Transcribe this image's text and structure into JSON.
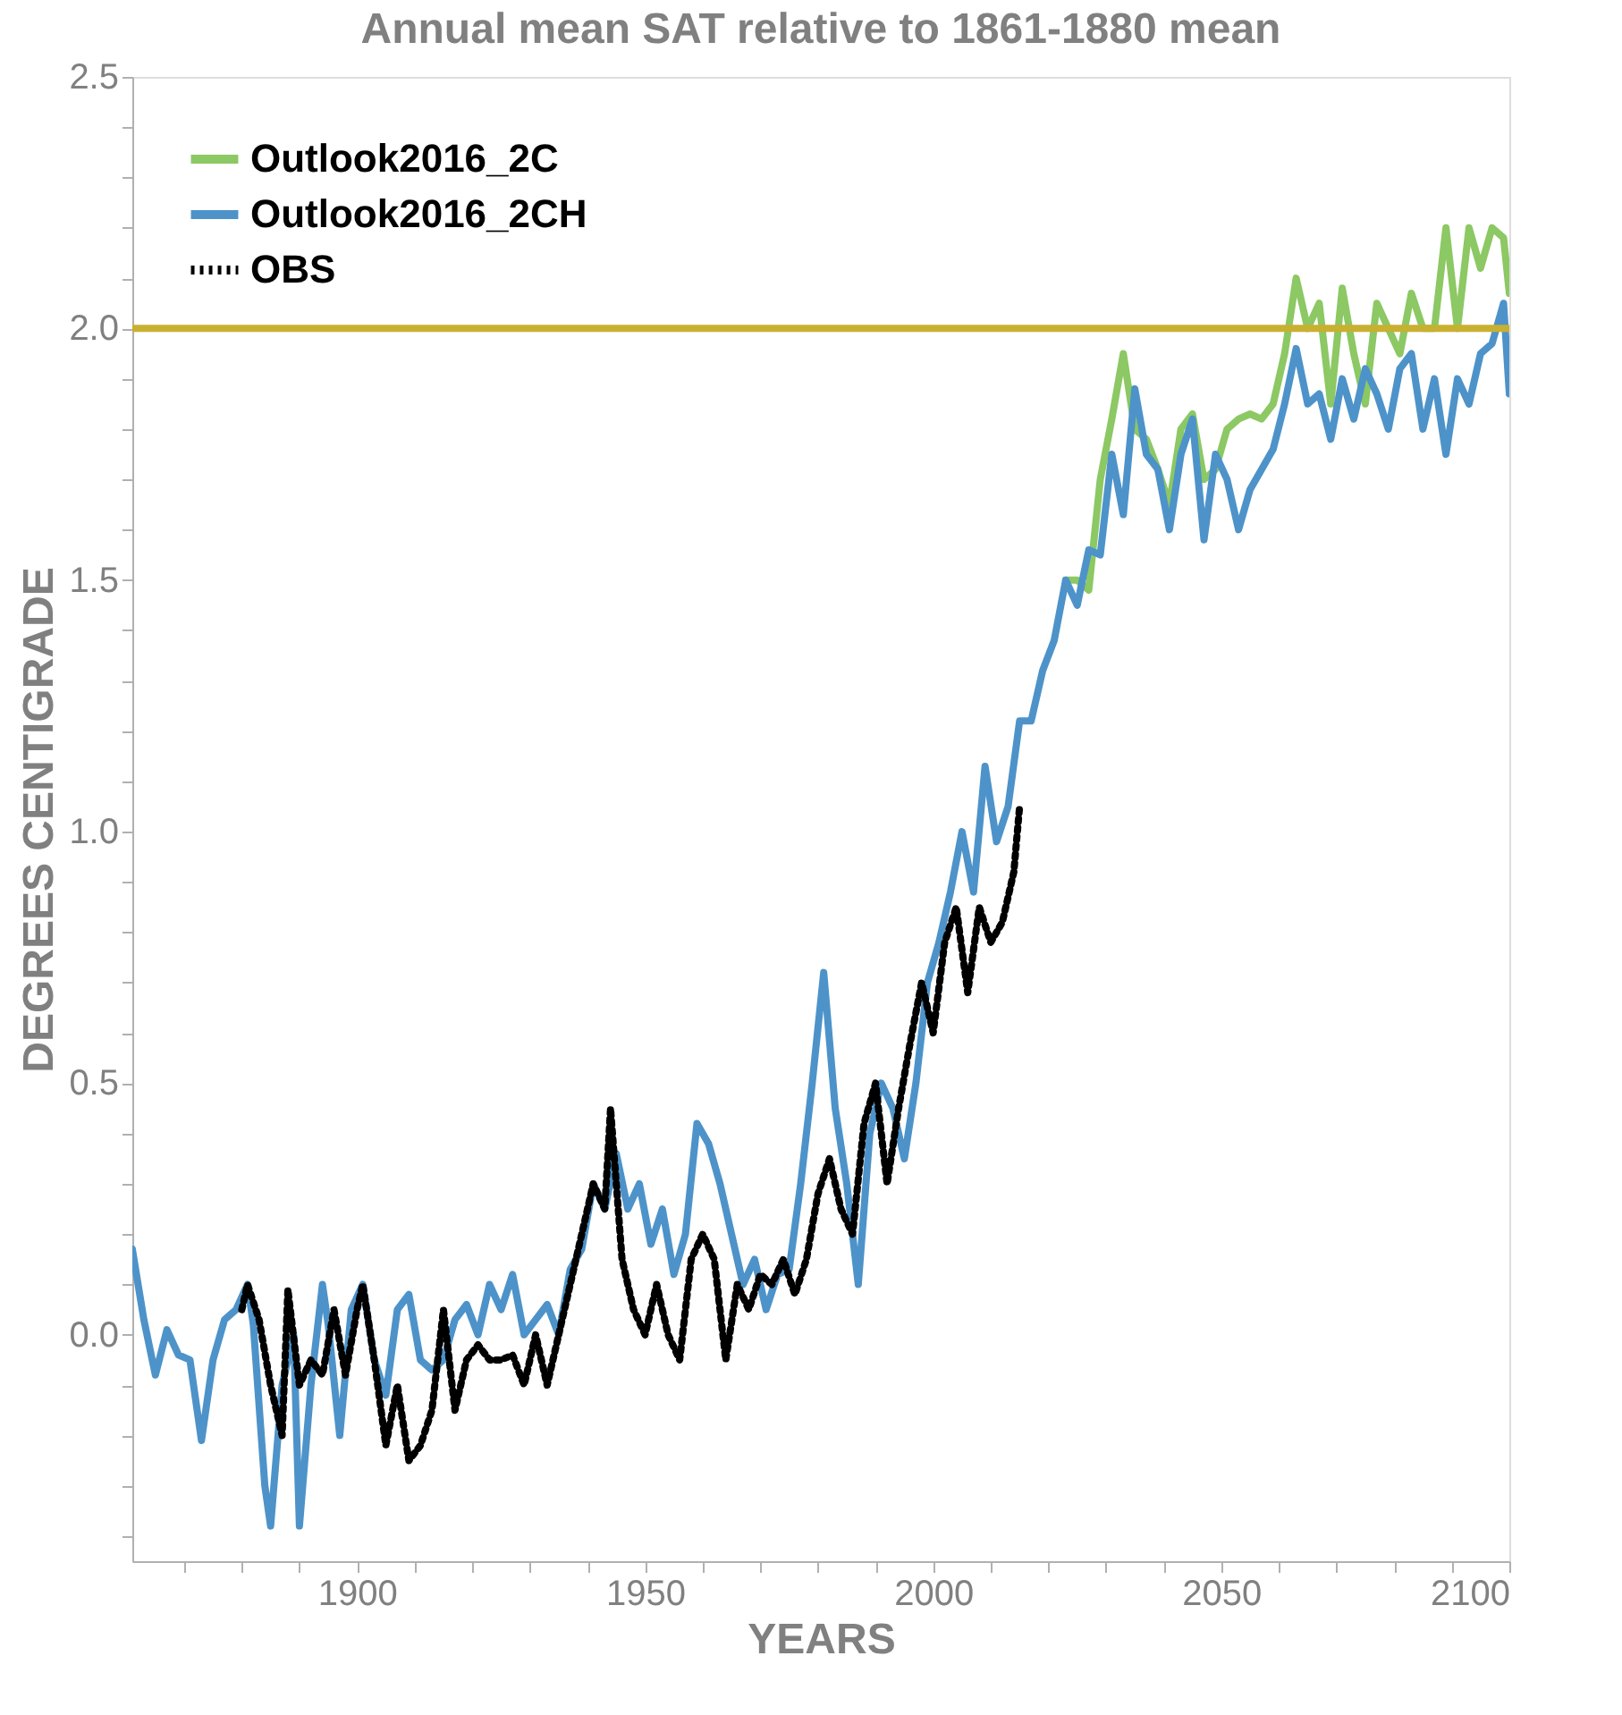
{
  "chart_data": {
    "type": "line",
    "title": "Annual mean SAT relative to 1861-1880 mean",
    "xlabel": "YEARS",
    "ylabel": "DEGREES CENTIGRADE",
    "xlim": [
      1861,
      2100
    ],
    "ylim": [
      -0.45,
      2.5
    ],
    "xticks": [
      {
        "value": 1870,
        "label": null
      },
      {
        "value": 1880,
        "label": null
      },
      {
        "value": 1890,
        "label": null
      },
      1900,
      {
        "value": 1910,
        "label": null
      },
      {
        "value": 1920,
        "label": null
      },
      {
        "value": 1930,
        "label": null
      },
      {
        "value": 1940,
        "label": null
      },
      1950,
      {
        "value": 1960,
        "label": null
      },
      {
        "value": 1970,
        "label": null
      },
      {
        "value": 1980,
        "label": null
      },
      {
        "value": 1990,
        "label": null
      },
      2000,
      {
        "value": 2010,
        "label": null
      },
      {
        "value": 2020,
        "label": null
      },
      {
        "value": 2030,
        "label": null
      },
      {
        "value": 2040,
        "label": null
      },
      2050,
      {
        "value": 2060,
        "label": null
      },
      {
        "value": 2070,
        "label": null
      },
      {
        "value": 2080,
        "label": null
      },
      {
        "value": 2090,
        "label": null
      },
      2100
    ],
    "yticks": [
      {
        "value": -0.4,
        "label": null
      },
      {
        "value": -0.3,
        "label": null
      },
      {
        "value": -0.2,
        "label": null
      },
      {
        "value": -0.1,
        "label": null
      },
      {
        "value": 0.0,
        "label": "0.0"
      },
      {
        "value": 0.1,
        "label": null
      },
      {
        "value": 0.2,
        "label": null
      },
      {
        "value": 0.3,
        "label": null
      },
      {
        "value": 0.4,
        "label": null
      },
      0.5,
      {
        "value": 0.6,
        "label": null
      },
      {
        "value": 0.7,
        "label": null
      },
      {
        "value": 0.8,
        "label": null
      },
      {
        "value": 0.9,
        "label": null
      },
      {
        "value": 1.0,
        "label": "1.0"
      },
      {
        "value": 1.1,
        "label": null
      },
      {
        "value": 1.2,
        "label": null
      },
      {
        "value": 1.3,
        "label": null
      },
      {
        "value": 1.4,
        "label": null
      },
      1.5,
      {
        "value": 1.6,
        "label": null
      },
      {
        "value": 1.7,
        "label": null
      },
      {
        "value": 1.8,
        "label": null
      },
      {
        "value": 1.9,
        "label": null
      },
      {
        "value": 2.0,
        "label": "2.0"
      },
      {
        "value": 2.1,
        "label": null
      },
      {
        "value": 2.2,
        "label": null
      },
      {
        "value": 2.3,
        "label": null
      },
      {
        "value": 2.4,
        "label": null
      },
      2.5
    ],
    "grid": false,
    "legend": "top left",
    "marker": "none",
    "ref_lines": [
      {
        "axis": "y",
        "value": 2.0,
        "color": "#c8b030",
        "line_style": "solid"
      }
    ],
    "series": [
      {
        "name": "Outlook2016_2C",
        "color": "#8cc863",
        "line_style": "solid",
        "x": [
          2023,
          2025,
          2027,
          2029,
          2031,
          2033,
          2035,
          2037,
          2039,
          2041,
          2043,
          2045,
          2047,
          2049,
          2051,
          2053,
          2055,
          2057,
          2059,
          2061,
          2063,
          2065,
          2067,
          2069,
          2071,
          2073,
          2075,
          2077,
          2079,
          2081,
          2083,
          2085,
          2087,
          2089,
          2091,
          2093,
          2095,
          2097,
          2099,
          2100
        ],
        "values": [
          1.5,
          1.5,
          1.48,
          1.7,
          1.82,
          1.95,
          1.8,
          1.78,
          1.72,
          1.65,
          1.8,
          1.83,
          1.7,
          1.72,
          1.8,
          1.82,
          1.83,
          1.82,
          1.85,
          1.95,
          2.1,
          2.0,
          2.05,
          1.85,
          2.08,
          1.95,
          1.85,
          2.05,
          2.0,
          1.95,
          2.07,
          2.0,
          2.0,
          2.2,
          2.0,
          2.2,
          2.12,
          2.2,
          2.18,
          2.07
        ]
      },
      {
        "name": "Outlook2016_2CH",
        "color": "#4d93c9",
        "line_style": "solid",
        "x": [
          1861,
          1863,
          1865,
          1867,
          1869,
          1871,
          1873,
          1875,
          1877,
          1879,
          1881,
          1882,
          1884,
          1885,
          1887,
          1889,
          1890,
          1892,
          1894,
          1895,
          1897,
          1899,
          1901,
          1903,
          1905,
          1907,
          1909,
          1911,
          1913,
          1915,
          1917,
          1919,
          1921,
          1923,
          1925,
          1927,
          1929,
          1931,
          1933,
          1935,
          1937,
          1939,
          1941,
          1943,
          1945,
          1947,
          1949,
          1951,
          1953,
          1955,
          1957,
          1959,
          1961,
          1963,
          1965,
          1967,
          1969,
          1971,
          1973,
          1975,
          1977,
          1979,
          1981,
          1983,
          1985,
          1987,
          1989,
          1991,
          1993,
          1995,
          1997,
          1999,
          2001,
          2003,
          2005,
          2007,
          2009,
          2011,
          2013,
          2015,
          2017,
          2019,
          2021,
          2023,
          2025,
          2027,
          2029,
          2031,
          2033,
          2035,
          2037,
          2039,
          2041,
          2043,
          2045,
          2047,
          2049,
          2051,
          2053,
          2055,
          2057,
          2059,
          2061,
          2063,
          2065,
          2067,
          2069,
          2071,
          2073,
          2075,
          2077,
          2079,
          2081,
          2083,
          2085,
          2087,
          2089,
          2091,
          2093,
          2095,
          2097,
          2099,
          2100
        ],
        "values": [
          0.17,
          0.03,
          -0.08,
          0.01,
          -0.04,
          -0.05,
          -0.21,
          -0.05,
          0.03,
          0.05,
          0.1,
          0.02,
          -0.3,
          -0.38,
          -0.1,
          0.0,
          -0.38,
          -0.1,
          0.1,
          0.02,
          -0.2,
          0.05,
          0.1,
          -0.05,
          -0.12,
          0.05,
          0.08,
          -0.05,
          -0.07,
          -0.05,
          0.03,
          0.06,
          0.0,
          0.1,
          0.05,
          0.12,
          0.0,
          0.03,
          0.06,
          0.0,
          0.13,
          0.17,
          0.3,
          0.25,
          0.36,
          0.25,
          0.3,
          0.18,
          0.25,
          0.12,
          0.2,
          0.42,
          0.38,
          0.3,
          0.2,
          0.1,
          0.15,
          0.05,
          0.12,
          0.13,
          0.3,
          0.5,
          0.72,
          0.45,
          0.3,
          0.1,
          0.4,
          0.5,
          0.45,
          0.35,
          0.5,
          0.7,
          0.78,
          0.88,
          1.0,
          0.88,
          1.13,
          0.98,
          1.05,
          1.22,
          1.22,
          1.32,
          1.38,
          1.5,
          1.45,
          1.56,
          1.55,
          1.75,
          1.63,
          1.88,
          1.75,
          1.72,
          1.6,
          1.75,
          1.82,
          1.58,
          1.75,
          1.7,
          1.6,
          1.68,
          1.72,
          1.76,
          1.85,
          1.96,
          1.85,
          1.87,
          1.78,
          1.9,
          1.82,
          1.92,
          1.87,
          1.8,
          1.92,
          1.95,
          1.8,
          1.9,
          1.75,
          1.9,
          1.85,
          1.95,
          1.97,
          2.05,
          1.87
        ]
      },
      {
        "name": "OBS",
        "color": "#000000",
        "line_style": "dotted",
        "x": [
          1880,
          1881,
          1883,
          1885,
          1887,
          1888,
          1890,
          1892,
          1894,
          1896,
          1898,
          1900,
          1901,
          1903,
          1905,
          1907,
          1909,
          1911,
          1913,
          1915,
          1917,
          1919,
          1921,
          1923,
          1925,
          1927,
          1929,
          1931,
          1933,
          1935,
          1937,
          1939,
          1941,
          1943,
          1944,
          1946,
          1948,
          1950,
          1952,
          1954,
          1956,
          1958,
          1960,
          1962,
          1964,
          1966,
          1968,
          1970,
          1972,
          1974,
          1976,
          1978,
          1980,
          1982,
          1984,
          1986,
          1988,
          1990,
          1992,
          1994,
          1996,
          1998,
          2000,
          2002,
          2004,
          2006,
          2008,
          2010,
          2012,
          2014,
          2015
        ],
        "values": [
          0.05,
          0.1,
          0.03,
          -0.1,
          -0.2,
          0.09,
          -0.1,
          -0.05,
          -0.08,
          0.05,
          -0.08,
          0.05,
          0.1,
          -0.05,
          -0.22,
          -0.1,
          -0.25,
          -0.22,
          -0.15,
          0.05,
          -0.15,
          -0.05,
          -0.02,
          -0.05,
          -0.05,
          -0.04,
          -0.1,
          0.0,
          -0.1,
          0.0,
          0.1,
          0.2,
          0.3,
          0.25,
          0.45,
          0.15,
          0.05,
          0.0,
          0.1,
          0.0,
          -0.05,
          0.15,
          0.2,
          0.15,
          -0.05,
          0.1,
          0.05,
          0.12,
          0.1,
          0.15,
          0.08,
          0.15,
          0.28,
          0.35,
          0.25,
          0.2,
          0.42,
          0.5,
          0.3,
          0.45,
          0.58,
          0.7,
          0.6,
          0.78,
          0.85,
          0.68,
          0.85,
          0.78,
          0.82,
          0.92,
          1.05
        ]
      }
    ]
  }
}
